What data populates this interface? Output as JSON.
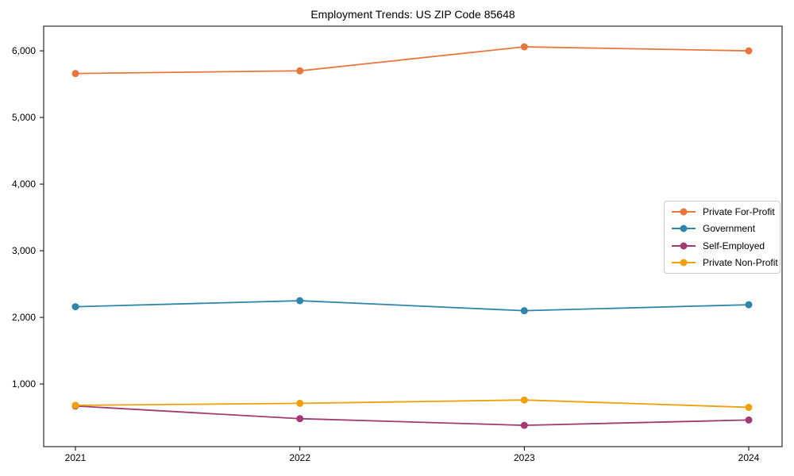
{
  "figure": {
    "title": "Employment Trends: US ZIP Code 85648"
  },
  "chart_data": {
    "type": "line",
    "title": "Employment Trends: US ZIP Code 85648",
    "xlabel": "",
    "ylabel": "",
    "grid": false,
    "legend_position": "center right",
    "marker": "circle",
    "x": [
      2021,
      2022,
      2023,
      2024
    ],
    "x_tick_labels": [
      "2021",
      "2022",
      "2023",
      "2024"
    ],
    "yticks": [
      1000,
      2000,
      3000,
      4000,
      5000,
      6000
    ],
    "ytick_labels": [
      "1,000",
      "2,000",
      "3,000",
      "4,000",
      "5,000",
      "6,000"
    ],
    "ylim": [
      60,
      6370
    ],
    "series": [
      {
        "name": "Private For-Profit",
        "color": "#E8773D",
        "values": [
          5660,
          5700,
          6060,
          6000
        ]
      },
      {
        "name": "Government",
        "color": "#2E86AB",
        "values": [
          2160,
          2250,
          2100,
          2190
        ]
      },
      {
        "name": "Self-Employed",
        "color": "#A23B72",
        "values": [
          670,
          480,
          380,
          460
        ]
      },
      {
        "name": "Private Non-Profit",
        "color": "#EFA00B",
        "values": [
          680,
          710,
          760,
          650
        ]
      }
    ]
  },
  "colors": {
    "axis": "#000000",
    "text": "#000000",
    "legend_border": "#cccccc",
    "background": "#ffffff"
  }
}
